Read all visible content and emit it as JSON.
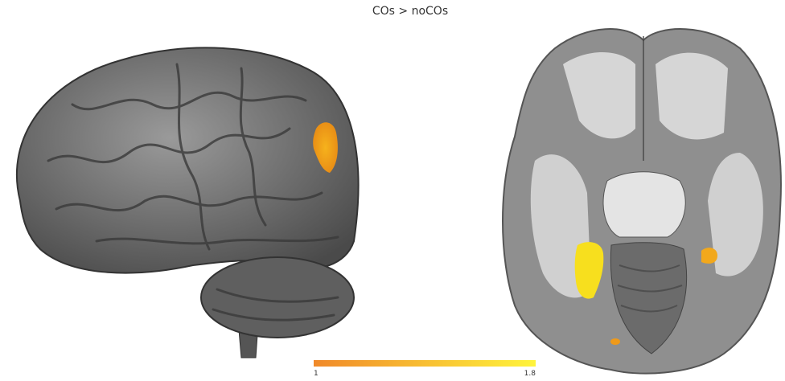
{
  "title": "COs > noCOs",
  "colorbar": {
    "min": 1,
    "max": 1.8,
    "colors": [
      "#f0892a",
      "#fff43c"
    ]
  }
}
